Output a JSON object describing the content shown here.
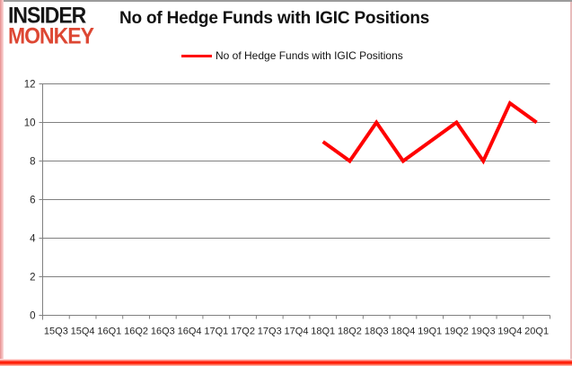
{
  "logo": {
    "line1": "INSIDER",
    "line2": "MONKEY"
  },
  "header": {
    "title": "No of Hedge Funds with IGIC Positions"
  },
  "legend": {
    "label": "No of Hedge Funds with IGIC Positions"
  },
  "colors": {
    "line": "#ff0000",
    "logo_black": "#151515",
    "logo_red": "#dd4733",
    "gridline": "#808080",
    "axis": "#808080",
    "tick_text": "#262626",
    "frame_bottom_red": "#ff1400",
    "frame_side_pink": "#e88f8f",
    "frame_top_gray": "#9b9b9b"
  },
  "chart_data": {
    "type": "line",
    "title": "No of Hedge Funds with IGIC Positions",
    "xlabel": "",
    "ylabel": "",
    "categories": [
      "15Q3",
      "15Q4",
      "16Q1",
      "16Q2",
      "16Q3",
      "16Q4",
      "17Q1",
      "17Q2",
      "17Q3",
      "17Q4",
      "18Q1",
      "18Q2",
      "18Q3",
      "18Q4",
      "19Q1",
      "19Q2",
      "19Q3",
      "19Q4",
      "20Q1"
    ],
    "series": [
      {
        "name": "No of Hedge Funds with IGIC Positions",
        "values": [
          null,
          null,
          null,
          null,
          null,
          null,
          null,
          null,
          null,
          null,
          9,
          8,
          10,
          8,
          9,
          10,
          8,
          11,
          10
        ]
      }
    ],
    "ylim": [
      0,
      12
    ],
    "ytick_step": 2,
    "grid": true,
    "legend_position": "top"
  }
}
